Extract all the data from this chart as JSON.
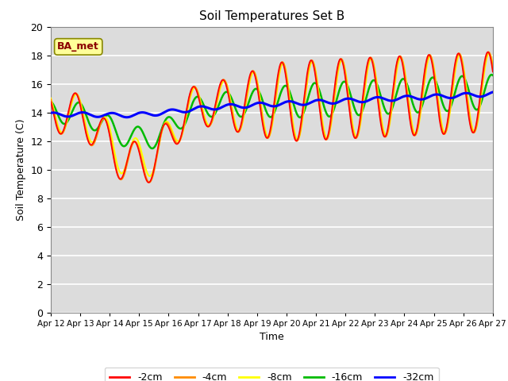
{
  "title": "Soil Temperatures Set B",
  "xlabel": "Time",
  "ylabel": "Soil Temperature (C)",
  "xlim": [
    0,
    360
  ],
  "ylim": [
    0,
    20
  ],
  "yticks": [
    0,
    2,
    4,
    6,
    8,
    10,
    12,
    14,
    16,
    18,
    20
  ],
  "xtick_labels": [
    "Apr 12",
    "Apr 13",
    "Apr 14",
    "Apr 15",
    "Apr 16",
    "Apr 17",
    "Apr 18",
    "Apr 19",
    "Apr 20",
    "Apr 21",
    "Apr 22",
    "Apr 23",
    "Apr 24",
    "Apr 25",
    "Apr 26",
    "Apr 27"
  ],
  "annotation_text": "BA_met",
  "annotation_color": "#8B0000",
  "annotation_bg": "#FFFF99",
  "bg_color": "#DCDCDC",
  "grid_color": "#FFFFFF",
  "line_colors": [
    "#FF0000",
    "#FF8C00",
    "#FFFF00",
    "#00BB00",
    "#0000FF"
  ],
  "line_labels": [
    "-2cm",
    "-4cm",
    "-8cm",
    "-16cm",
    "-32cm"
  ],
  "line_widths": [
    1.2,
    1.5,
    1.5,
    1.8,
    2.2
  ]
}
